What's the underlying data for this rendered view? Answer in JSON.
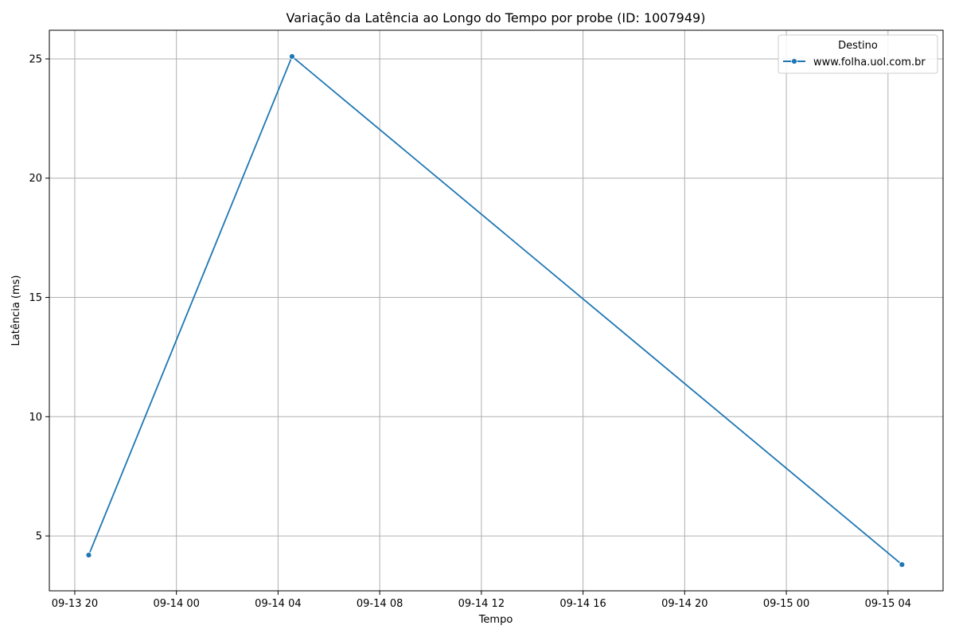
{
  "chart_data": {
    "type": "line",
    "title": "Variação da Latência ao Longo do Tempo por probe (ID: 1007949)",
    "xlabel": "Tempo",
    "ylabel": "Latência (ms)",
    "x_ticks": [
      "09-13 20",
      "09-14 00",
      "09-14 04",
      "09-14 08",
      "09-14 12",
      "09-14 16",
      "09-14 20",
      "09-15 00",
      "09-15 04"
    ],
    "y_ticks": [
      "5",
      "10",
      "15",
      "20",
      "25"
    ],
    "xlim": [
      "2024-09-13 19:00",
      "2024-09-15 06:10"
    ],
    "ylim": [
      2.7,
      26.2
    ],
    "grid": true,
    "legend": {
      "title": "Destino",
      "position": "top-right"
    },
    "series": [
      {
        "name": "www.folha.uol.com.br",
        "color": "#1f77b4",
        "x": [
          "2024-09-13 20:33",
          "2024-09-14 04:33",
          "2024-09-15 04:33"
        ],
        "y": [
          4.2,
          25.1,
          3.8
        ]
      }
    ]
  }
}
